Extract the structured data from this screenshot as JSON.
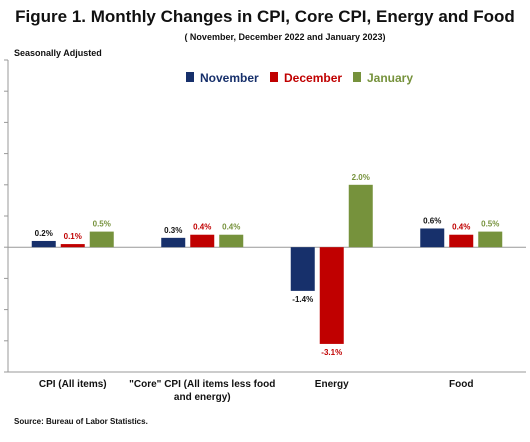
{
  "title": "Figure 1. Monthly Changes in CPI, Core CPI, Energy and Food",
  "subtitle": "( November, December 2022 and January 2023)",
  "note": "Seasonally Adjusted",
  "source": "Source: Bureau of Labor Statistics.",
  "chart_data": {
    "type": "bar",
    "categories": [
      "CPI (All items)",
      "\"Core\" CPI (All items less food and energy)",
      "Energy",
      "Food"
    ],
    "series": [
      {
        "name": "November",
        "values": [
          0.2,
          0.3,
          -1.4,
          0.6
        ],
        "labels": [
          "0.2%",
          "0.3%",
          "-1.4%",
          "0.6%"
        ],
        "color": "#17306b",
        "label_color": "#111111"
      },
      {
        "name": "December",
        "values": [
          0.1,
          0.4,
          -3.1,
          0.4
        ],
        "labels": [
          "0.1%",
          "0.4%",
          "-3.1%",
          "0.4%"
        ],
        "color": "#c00000",
        "label_color": "#c00000"
      },
      {
        "name": "January",
        "values": [
          0.5,
          0.4,
          2.0,
          0.5
        ],
        "labels": [
          "0.5%",
          "0.4%",
          "2.0%",
          "0.5%"
        ],
        "color": "#76923c",
        "label_color": "#76923c"
      }
    ],
    "ylim": [
      -4.0,
      6.0
    ],
    "ytick_step": 1.0,
    "ytick_labels_visible": false,
    "grid": false,
    "legend_position": "top-center"
  }
}
